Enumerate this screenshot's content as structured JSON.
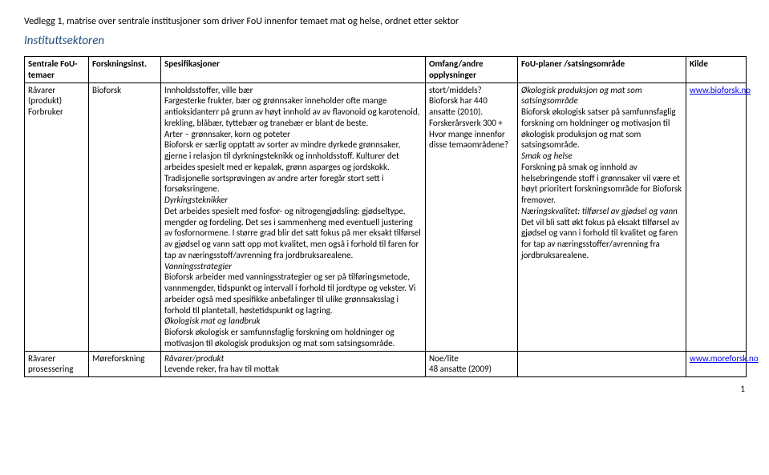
{
  "header": {
    "title": "Vedlegg 1, matrise over sentrale institusjoner som driver FoU innenfor temaet mat og helse, ordnet etter sektor",
    "subtitle": "Instituttsektoren"
  },
  "table": {
    "headers": {
      "c1": "Sentrale FoU-temaer",
      "c2": "Forskningsinst.",
      "c3": "Spesifikasjoner",
      "c4": "Omfang/andre opplysninger",
      "c5": "FoU-planer /satsingsområde",
      "c6": "Kilde"
    },
    "row1": {
      "c1": "Råvarer (produkt) Forbruker",
      "c2": "Bioforsk",
      "c3_h1": "Innholdsstoffer, ville bær",
      "c3_p1": "Fargesterke frukter, bær og grønnsaker inneholder ofte mange antioksidanterr på grunn av høyt innhold av av flavonoid og karotenoid, krekling, blåbær, tyttebær og tranebær er blant de beste.",
      "c3_h2": "Arter – grønnsaker, korn og poteter",
      "c3_p2": "Bioforsk er særlig opptatt av sorter av mindre dyrkede grønnsaker, gjerne i relasjon til dyrkningsteknikk og innholdsstoff. Kulturer det arbeides spesielt med er kepaløk, grønn asparges og jordskokk. Tradisjonelle sortsprøvingen av andre arter foregår stort sett i forsøksringene.",
      "c3_h3": "Dyrkingsteknikker",
      "c3_p3": "Det arbeides spesielt med fosfor- og nitrogengjødsling: gjødseltype, mengder og fordeling. Det ses i sammenheng med eventuell justering av fosfornormene. I større grad blir det satt fokus på mer eksakt tilførsel av gjødsel og vann satt opp mot kvalitet, men også i forhold til faren for tap av næringsstoff/avrenning fra jordbruksarealene.",
      "c3_h4": "Vanningsstrategier",
      "c3_p4": "Bioforsk arbeider med vanningsstrategier og ser på tilføringsmetode, vannmengder, tidspunkt og intervall i forhold til jordtype og vekster. Vi arbeider også med spesifikke anbefalinger til ulike grønnsaksslag i forhold til plantetall, høstetidspunkt og lagring.",
      "c3_h5": "Økologisk mat og landbruk",
      "c3_p5": "Bioforsk økologisk er samfunnsfaglig forskning om holdninger og motivasjon til økologisk produksjon og mat som satsingsområde.",
      "c4_l1": "stort/middels?",
      "c4_l2": "Bioforsk har 440 ansatte (2010).",
      "c4_l3": "Forskerårsverk 300 +",
      "c4_l4": "Hvor mange innenfor disse temaområdene?",
      "c5_h1": "Økologisk produksjon og mat som satsingsområde",
      "c5_p1": "Bioforsk økologisk satser på samfunnsfaglig forskning om holdninger og motivasjon til økologisk produksjon og mat som satsingsområde.",
      "c5_h2": "Smak og helse",
      "c5_p2": "Forskning på smak og innhold av helsebringende stoff i grønnsaker vil være et høyt prioritert forskningsområde for Bioforsk fremover.",
      "c5_h3": "Næringskvalitet: tilførsel av gjødsel og vann",
      "c5_p3": "Det vil bli satt økt fokus på eksakt tilførsel av gjødsel og vann i forhold til kvalitet og faren for tap av næringsstoffer/avrenning fra jordbruksarealene.",
      "c6_l1": "www.bioforsk.no"
    },
    "row2": {
      "c1": "Råvarer prosessering",
      "c2": "Møreforskning",
      "c3_h1": "Råvarer/produkt",
      "c3_p1": "Levende reker, fra hav til mottak",
      "c4_l1": "Noe/lite",
      "c4_l2": "48 ansatte (2009)",
      "c5": "",
      "c6_l1": "www.moreforsk.no"
    }
  },
  "page_number": "1"
}
